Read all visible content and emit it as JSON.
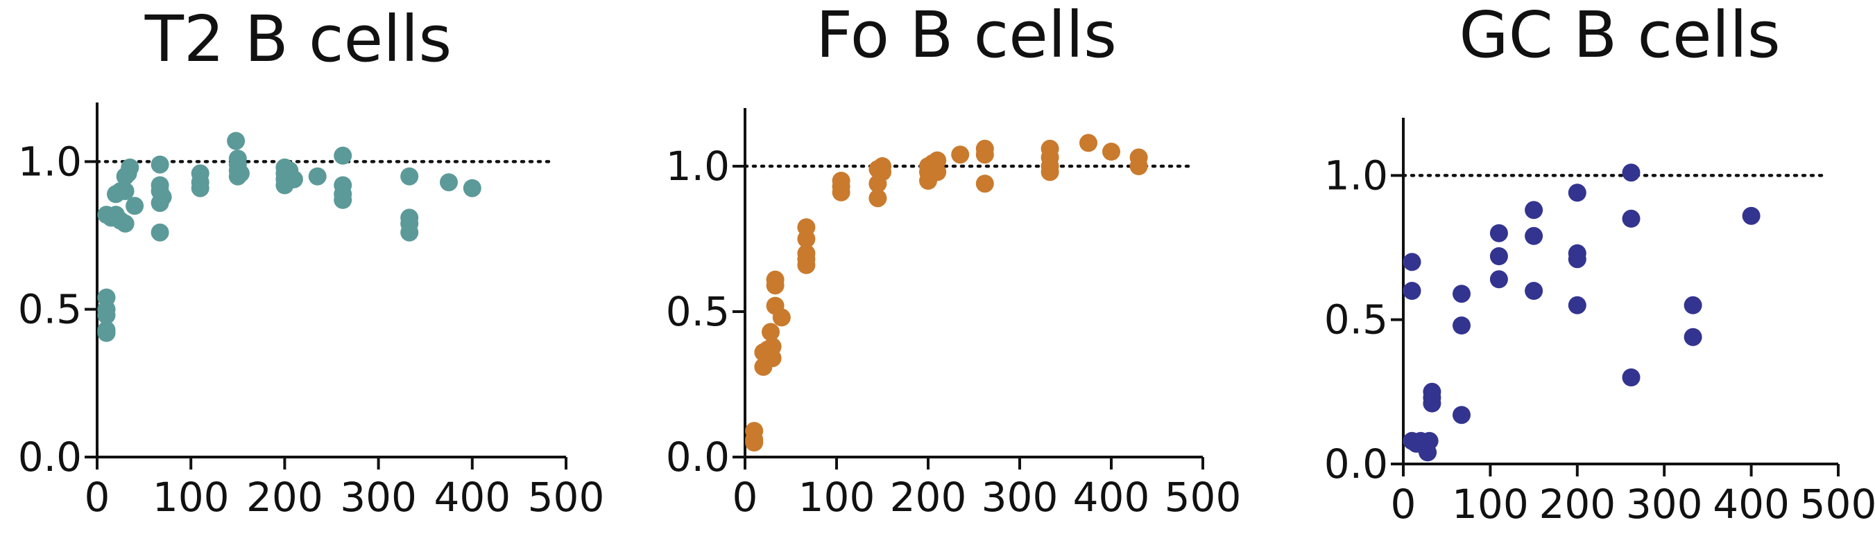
{
  "chart_data": [
    {
      "type": "scatter",
      "title": "T2 B cells",
      "xlim": [
        0,
        500
      ],
      "ylim": [
        0,
        1.2
      ],
      "xticks": [
        "0",
        "100",
        "200",
        "300",
        "400",
        "500"
      ],
      "yticks": [
        "0.0",
        "0.5",
        "1.0"
      ],
      "reference_line": 1.0,
      "color": "#5b9a98",
      "points": [
        [
          10,
          0.54
        ],
        [
          10,
          0.5
        ],
        [
          10,
          0.48
        ],
        [
          10,
          0.43
        ],
        [
          10,
          0.42
        ],
        [
          10,
          0.82
        ],
        [
          15,
          0.81
        ],
        [
          20,
          0.82
        ],
        [
          20,
          0.89
        ],
        [
          25,
          0.9
        ],
        [
          25,
          0.8
        ],
        [
          30,
          0.79
        ],
        [
          30,
          0.9
        ],
        [
          30,
          0.95
        ],
        [
          33,
          0.96
        ],
        [
          35,
          0.98
        ],
        [
          40,
          0.85
        ],
        [
          67,
          0.99
        ],
        [
          67,
          0.92
        ],
        [
          67,
          0.9
        ],
        [
          67,
          0.86
        ],
        [
          67,
          0.76
        ],
        [
          70,
          0.88
        ],
        [
          110,
          0.96
        ],
        [
          110,
          0.93
        ],
        [
          110,
          0.91
        ],
        [
          148,
          1.07
        ],
        [
          150,
          1.01
        ],
        [
          150,
          0.99
        ],
        [
          150,
          0.97
        ],
        [
          150,
          0.95
        ],
        [
          153,
          0.96
        ],
        [
          200,
          0.98
        ],
        [
          200,
          0.96
        ],
        [
          200,
          0.94
        ],
        [
          200,
          0.92
        ],
        [
          205,
          0.97
        ],
        [
          210,
          0.94
        ],
        [
          235,
          0.95
        ],
        [
          262,
          1.02
        ],
        [
          262,
          0.92
        ],
        [
          262,
          0.89
        ],
        [
          262,
          0.87
        ],
        [
          333,
          0.95
        ],
        [
          333,
          0.81
        ],
        [
          333,
          0.79
        ],
        [
          333,
          0.76
        ],
        [
          375,
          0.93
        ],
        [
          400,
          0.91
        ]
      ]
    },
    {
      "type": "scatter",
      "title": "Fo B cells",
      "xlim": [
        0,
        500
      ],
      "ylim": [
        0,
        1.2
      ],
      "xticks": [
        "0",
        "100",
        "200",
        "300",
        "400",
        "500"
      ],
      "yticks": [
        "0.0",
        "0.5",
        "1.0"
      ],
      "reference_line": 1.0,
      "color": "#c97a2d",
      "points": [
        [
          10,
          0.09
        ],
        [
          10,
          0.06
        ],
        [
          10,
          0.05
        ],
        [
          20,
          0.36
        ],
        [
          20,
          0.31
        ],
        [
          25,
          0.37
        ],
        [
          28,
          0.43
        ],
        [
          30,
          0.38
        ],
        [
          30,
          0.34
        ],
        [
          33,
          0.61
        ],
        [
          33,
          0.59
        ],
        [
          33,
          0.52
        ],
        [
          40,
          0.48
        ],
        [
          67,
          0.79
        ],
        [
          67,
          0.75
        ],
        [
          67,
          0.7
        ],
        [
          67,
          0.68
        ],
        [
          67,
          0.66
        ],
        [
          105,
          0.95
        ],
        [
          105,
          0.93
        ],
        [
          105,
          0.91
        ],
        [
          145,
          0.99
        ],
        [
          145,
          0.94
        ],
        [
          145,
          0.89
        ],
        [
          150,
          1.0
        ],
        [
          150,
          0.98
        ],
        [
          200,
          1.0
        ],
        [
          200,
          0.98
        ],
        [
          200,
          0.95
        ],
        [
          205,
          1.01
        ],
        [
          210,
          1.02
        ],
        [
          210,
          0.98
        ],
        [
          235,
          1.04
        ],
        [
          262,
          1.06
        ],
        [
          262,
          1.04
        ],
        [
          262,
          0.94
        ],
        [
          333,
          1.06
        ],
        [
          333,
          1.03
        ],
        [
          333,
          1.0
        ],
        [
          333,
          0.98
        ],
        [
          375,
          1.08
        ],
        [
          400,
          1.05
        ],
        [
          430,
          1.03
        ],
        [
          430,
          1.0
        ]
      ]
    },
    {
      "type": "scatter",
      "title": "GC B cells",
      "xlim": [
        0,
        500
      ],
      "ylim": [
        0,
        1.2
      ],
      "xticks": [
        "0",
        "100",
        "200",
        "300",
        "400",
        "500"
      ],
      "yticks": [
        "0.0",
        "0.5",
        "1.0"
      ],
      "reference_line": 1.0,
      "color": "#33348f",
      "points": [
        [
          10,
          0.7
        ],
        [
          10,
          0.6
        ],
        [
          10,
          0.08
        ],
        [
          15,
          0.07
        ],
        [
          20,
          0.08
        ],
        [
          25,
          0.07
        ],
        [
          25,
          0.06
        ],
        [
          28,
          0.04
        ],
        [
          30,
          0.08
        ],
        [
          33,
          0.25
        ],
        [
          33,
          0.23
        ],
        [
          33,
          0.21
        ],
        [
          67,
          0.59
        ],
        [
          67,
          0.48
        ],
        [
          67,
          0.17
        ],
        [
          110,
          0.8
        ],
        [
          110,
          0.72
        ],
        [
          110,
          0.64
        ],
        [
          150,
          0.88
        ],
        [
          150,
          0.79
        ],
        [
          150,
          0.6
        ],
        [
          200,
          0.94
        ],
        [
          200,
          0.73
        ],
        [
          200,
          0.71
        ],
        [
          200,
          0.55
        ],
        [
          262,
          1.01
        ],
        [
          262,
          0.85
        ],
        [
          262,
          0.3
        ],
        [
          333,
          0.55
        ],
        [
          333,
          0.44
        ],
        [
          400,
          0.86
        ]
      ]
    }
  ]
}
